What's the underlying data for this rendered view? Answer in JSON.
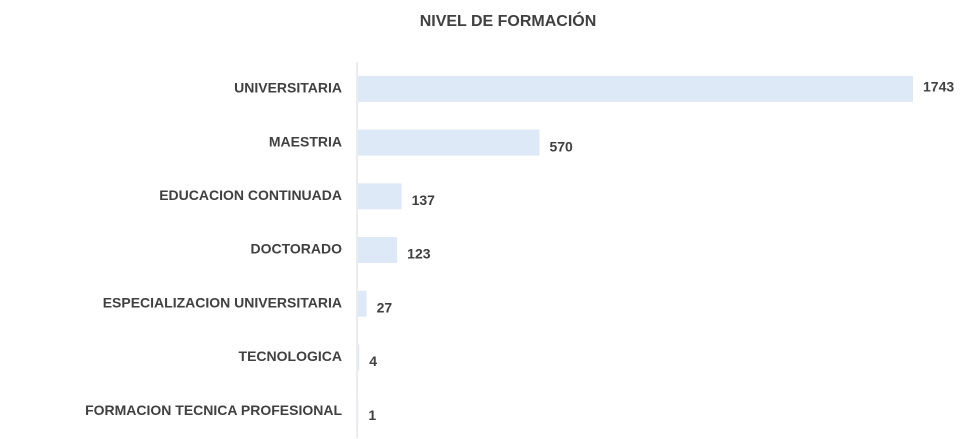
{
  "chart_data": {
    "type": "barh",
    "title": "NIVEL DE FORMACIÓN",
    "categories": [
      "UNIVERSITARIA",
      "MAESTRIA",
      "EDUCACION CONTINUADA",
      "DOCTORADO",
      "ESPECIALIZACION UNIVERSITARIA",
      "TECNOLOGICA",
      "FORMACION TECNICA PROFESIONAL"
    ],
    "values": [
      1743,
      570,
      137,
      123,
      27,
      4,
      1
    ],
    "color": "#dde9f7"
  }
}
